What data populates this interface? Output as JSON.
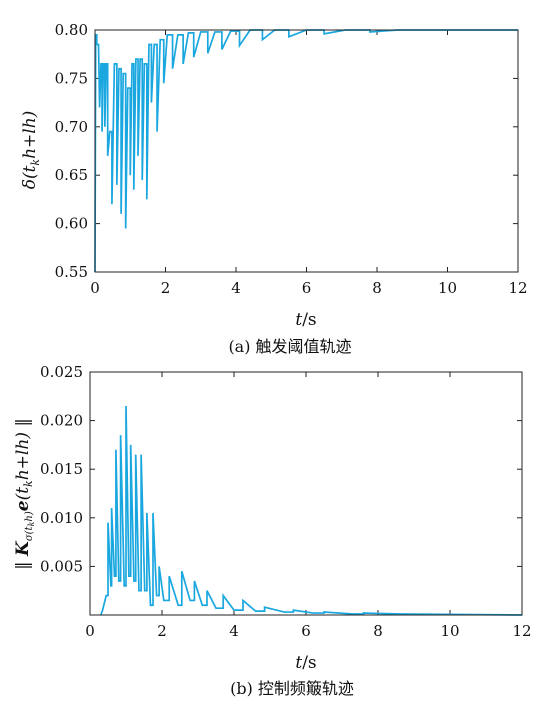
{
  "chart_data": [
    {
      "type": "line",
      "caption": "(a) 触发阈值轨迹",
      "xlabel": "t/s",
      "ylabel": "δ(t_k h+lh)",
      "xlim": [
        0,
        12
      ],
      "ylim": [
        0.55,
        0.8
      ],
      "xticks": [
        "0",
        "2",
        "4",
        "6",
        "8",
        "10",
        "12"
      ],
      "yticks": [
        "0.55",
        "0.60",
        "0.65",
        "0.70",
        "0.75",
        "0.80"
      ],
      "grid": false,
      "color": "#1aa7e0",
      "x": [
        0.0,
        0.02,
        0.05,
        0.05,
        0.1,
        0.13,
        0.17,
        0.2,
        0.2,
        0.24,
        0.28,
        0.28,
        0.32,
        0.36,
        0.36,
        0.42,
        0.48,
        0.48,
        0.55,
        0.62,
        0.62,
        0.68,
        0.74,
        0.74,
        0.8,
        0.87,
        0.87,
        0.93,
        1.0,
        1.0,
        1.05,
        1.1,
        1.1,
        1.16,
        1.22,
        1.22,
        1.28,
        1.34,
        1.34,
        1.4,
        1.47,
        1.47,
        1.53,
        1.6,
        1.6,
        1.68,
        1.76,
        1.76,
        1.85,
        1.95,
        1.95,
        2.05,
        2.2,
        2.2,
        2.35,
        2.5,
        2.5,
        2.65,
        2.8,
        2.8,
        3.0,
        3.2,
        3.2,
        3.4,
        3.6,
        3.6,
        3.85,
        4.1,
        4.1,
        4.4,
        4.75,
        4.75,
        5.1,
        5.5,
        5.5,
        6.0,
        6.5,
        6.5,
        7.1,
        7.8,
        7.8,
        8.6,
        12.0
      ],
      "values": [
        0.55,
        0.795,
        0.795,
        0.785,
        0.785,
        0.72,
        0.765,
        0.765,
        0.695,
        0.765,
        0.765,
        0.7,
        0.765,
        0.765,
        0.67,
        0.695,
        0.695,
        0.62,
        0.765,
        0.765,
        0.64,
        0.76,
        0.76,
        0.61,
        0.755,
        0.755,
        0.595,
        0.74,
        0.74,
        0.65,
        0.765,
        0.765,
        0.635,
        0.77,
        0.77,
        0.67,
        0.77,
        0.77,
        0.645,
        0.765,
        0.765,
        0.625,
        0.785,
        0.785,
        0.725,
        0.785,
        0.785,
        0.695,
        0.79,
        0.79,
        0.745,
        0.795,
        0.795,
        0.76,
        0.795,
        0.795,
        0.765,
        0.797,
        0.797,
        0.772,
        0.798,
        0.798,
        0.776,
        0.798,
        0.798,
        0.78,
        0.799,
        0.799,
        0.784,
        0.8,
        0.8,
        0.79,
        0.8,
        0.8,
        0.793,
        0.8,
        0.8,
        0.796,
        0.8,
        0.8,
        0.798,
        0.8,
        0.8
      ]
    },
    {
      "type": "line",
      "caption": "(b) 控制频簸轨迹",
      "xlabel": "t/s",
      "ylabel": "‖K_σ(t_k h) e(t_k h+lh)‖",
      "xlim": [
        0,
        12
      ],
      "ylim": [
        0,
        0.025
      ],
      "xticks": [
        "0",
        "2",
        "4",
        "6",
        "8",
        "10",
        "12"
      ],
      "yticks": [
        "",
        "0.005",
        "0.010",
        "0.015",
        "0.020",
        "0.025"
      ],
      "grid": false,
      "color": "#1aa7e0",
      "x": [
        0.3,
        0.35,
        0.45,
        0.5,
        0.5,
        0.58,
        0.6,
        0.6,
        0.68,
        0.72,
        0.72,
        0.8,
        0.85,
        0.85,
        0.95,
        1.0,
        1.0,
        1.08,
        1.13,
        1.13,
        1.22,
        1.27,
        1.27,
        1.36,
        1.42,
        1.42,
        1.52,
        1.58,
        1.58,
        1.68,
        1.75,
        1.75,
        1.85,
        1.92,
        1.92,
        2.05,
        2.2,
        2.2,
        2.45,
        2.55,
        2.55,
        2.78,
        2.9,
        2.9,
        3.12,
        3.25,
        3.25,
        3.5,
        3.7,
        3.7,
        4.0,
        4.25,
        4.25,
        4.6,
        4.85,
        4.85,
        5.4,
        5.65,
        5.65,
        6.2,
        6.5,
        6.5,
        7.3,
        7.6,
        7.6,
        8.6,
        12.0
      ],
      "values": [
        0.0,
        0.0005,
        0.002,
        0.002,
        0.0095,
        0.003,
        0.003,
        0.011,
        0.004,
        0.004,
        0.017,
        0.0035,
        0.0035,
        0.0185,
        0.003,
        0.003,
        0.0215,
        0.004,
        0.004,
        0.0175,
        0.0035,
        0.0035,
        0.0165,
        0.0025,
        0.0025,
        0.0165,
        0.0025,
        0.0025,
        0.0105,
        0.001,
        0.001,
        0.0105,
        0.002,
        0.002,
        0.005,
        0.0015,
        0.0015,
        0.004,
        0.001,
        0.001,
        0.0045,
        0.0015,
        0.0015,
        0.0035,
        0.001,
        0.001,
        0.0025,
        0.0007,
        0.0007,
        0.002,
        0.0005,
        0.0005,
        0.0015,
        0.0004,
        0.0004,
        0.0008,
        0.0003,
        0.0003,
        0.0005,
        0.0002,
        0.0002,
        0.0003,
        0.0001,
        0.0001,
        0.0002,
        0.0001,
        0.0
      ]
    }
  ]
}
